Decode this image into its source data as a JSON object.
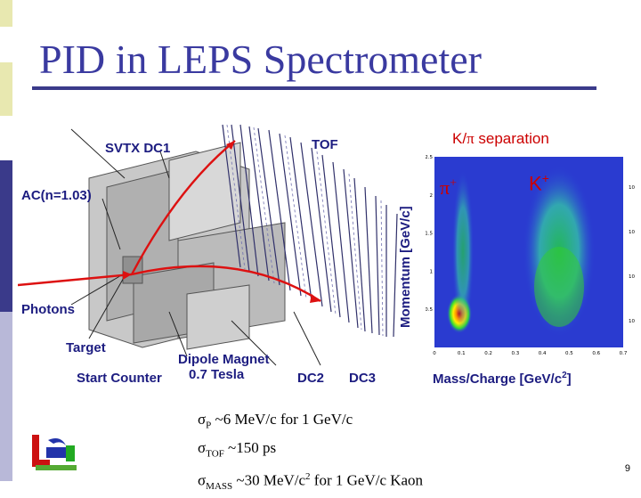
{
  "slide": {
    "title": "PID in LEPS Spectrometer",
    "page_number": "9"
  },
  "detector_labels": {
    "svtx_dc1": "SVTX DC1",
    "tof": "TOF",
    "ac": "AC(n=1.03)",
    "photons": "Photons",
    "target": "Target",
    "dipole": "Dipole Magnet",
    "start_counter": "Start Counter",
    "field": "0.7 Tesla",
    "dc2": "DC2",
    "dc3": "DC3"
  },
  "plot": {
    "title_prefix": "K/",
    "title_pi": "π",
    "title_suffix": " separation",
    "ylabel": "Momentum [GeV/c]",
    "xlabel_main": "Mass/Charge [GeV/c",
    "xlabel_sup": "2",
    "xlabel_end": "]",
    "pi_label": "π",
    "pi_sup": "+",
    "k_label": "K",
    "k_sup": "+",
    "x_ticks": [
      "0",
      "0.1",
      "0.2",
      "0.3",
      "0.4",
      "0.5",
      "0.6",
      "0.7"
    ],
    "y_ticks": [
      "0.5",
      "1",
      "1.5",
      "2",
      "2.5"
    ],
    "z_ticks": [
      "10",
      "10",
      "10",
      "10"
    ],
    "xlim": [
      0,
      0.7
    ],
    "ylim": [
      0,
      2.5
    ]
  },
  "formulas": {
    "f1_sigma": "σ",
    "f1_sub": "P",
    "f1_text": " ~6 MeV/c for 1 GeV/c",
    "f2_sigma": "σ",
    "f2_sub": "TOF",
    "f2_text": " ~150 ps",
    "f3_sigma": "σ",
    "f3_sub": "MASS",
    "f3_text": " ~30 MeV/c",
    "f3_sup": "2",
    "f3_end": " for 1 GeV/c Kaon"
  },
  "colors": {
    "title": "#3a3aa0",
    "label": "#1c1c80",
    "accent": "#cc0000",
    "bar_dark": "#3a3a8a",
    "bar_light": "#e8e8a0"
  }
}
